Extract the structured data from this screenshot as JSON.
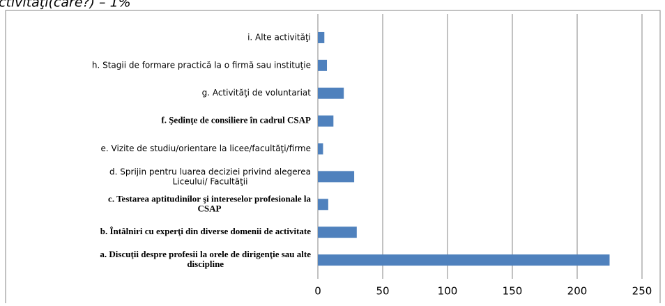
{
  "chart_data": {
    "type": "bar",
    "orientation": "horizontal",
    "annotation": "ctivităţi(care?)  – 1%",
    "categories": [
      "a. Discuţii despre profesii  la orele de dirigenţie sau alte\ndiscipline",
      "b. Întâlniri cu experţi din diverse domenii de activitate",
      "c. Testarea aptitudinilor şi intereselor  profesionale la\nCSAP",
      "d.  Sprijin pentru luarea deciziei privind alegerea\nLiceului/ Facultăţii",
      "e. Vizite de studiu/orientare la licee/facultăţi/firme",
      "f.  Şedinţe de consiliere în cadrul CSAP",
      "g. Activităţi de voluntariat",
      "h.  Stagii de formare practică la o firmă sau instituţie",
      "i. Alte activităţi"
    ],
    "values": [
      225,
      30,
      8,
      28,
      4,
      12,
      20,
      7,
      5
    ],
    "color": "#4f81bd",
    "xlim": [
      0,
      250
    ],
    "xticks": [
      0,
      50,
      100,
      150,
      200,
      250
    ],
    "grid": true
  }
}
